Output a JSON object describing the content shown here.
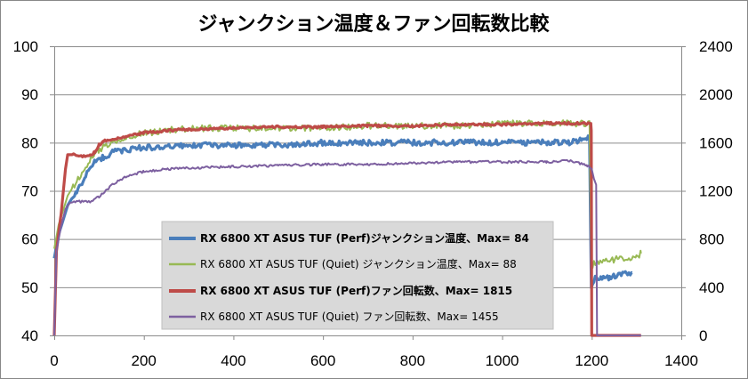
{
  "chart_data": {
    "type": "line",
    "title": "ジャンクション温度＆ファン回転数比較",
    "xlim": [
      0,
      1400
    ],
    "x_ticks": [
      "0",
      "200",
      "400",
      "600",
      "800",
      "1000",
      "1200",
      "1400"
    ],
    "y_left": {
      "lim": [
        40,
        100
      ],
      "ticks": [
        "100",
        "90",
        "80",
        "70",
        "60",
        "50",
        "40"
      ]
    },
    "y_right": {
      "lim": [
        0,
        2400
      ],
      "ticks": [
        "2400",
        "2000",
        "1600",
        "1200",
        "800",
        "400",
        "0"
      ]
    },
    "grid": true,
    "legend_position": "center-bottom",
    "series": [
      {
        "name": "RX 6800 XT ASUS TUF (Perf)ジャンクション温度、Max= 84",
        "axis": "left",
        "color": "#4a7ebb",
        "bold": true,
        "x": [
          0,
          10,
          20,
          30,
          50,
          70,
          90,
          110,
          130,
          160,
          200,
          250,
          300,
          400,
          500,
          600,
          700,
          800,
          900,
          1000,
          1100,
          1150,
          1195,
          1199,
          1205,
          1210,
          1220,
          1240,
          1260,
          1280,
          1290
        ],
        "y": [
          56,
          61,
          64,
          67,
          70,
          73,
          76,
          77,
          78,
          78.5,
          79,
          79,
          79.5,
          79.5,
          79.5,
          80,
          80,
          80,
          80,
          80,
          80,
          80,
          81,
          50,
          51.5,
          52,
          52,
          52,
          52.5,
          53,
          53
        ]
      },
      {
        "name": "RX 6800 XT ASUS TUF (Quiet) ジャンクション温度、Max= 88",
        "axis": "left",
        "color": "#98b954",
        "bold": false,
        "x": [
          0,
          10,
          20,
          30,
          50,
          70,
          90,
          110,
          130,
          160,
          200,
          250,
          300,
          400,
          500,
          600,
          700,
          800,
          900,
          1000,
          1100,
          1150,
          1195,
          1199,
          1205,
          1210,
          1220,
          1240,
          1260,
          1280,
          1300,
          1310
        ],
        "y": [
          58,
          63,
          66,
          69,
          72,
          75,
          78,
          79,
          80,
          81,
          82,
          82.5,
          83,
          83,
          83,
          83,
          83.5,
          83.5,
          83.5,
          84,
          84,
          84,
          84,
          54,
          55,
          55,
          55,
          55.5,
          56,
          56,
          56.5,
          57
        ]
      },
      {
        "name": "RX 6800 XT ASUS TUF (Perf)ファン回転数、Max= 1815",
        "axis": "right",
        "color": "#be4b48",
        "bold": true,
        "x": [
          0,
          5,
          15,
          25,
          30,
          40,
          60,
          80,
          90,
          100,
          110,
          130,
          160,
          200,
          250,
          300,
          400,
          500,
          600,
          700,
          800,
          900,
          1000,
          1100,
          1150,
          1198,
          1199,
          1200,
          1210,
          1250,
          1310
        ],
        "y": [
          0,
          700,
          1000,
          1380,
          1500,
          1500,
          1490,
          1490,
          1520,
          1580,
          1610,
          1630,
          1650,
          1680,
          1700,
          1710,
          1720,
          1730,
          1730,
          1740,
          1740,
          1750,
          1750,
          1760,
          1760,
          1760,
          1700,
          0,
          0,
          0,
          0
        ]
      },
      {
        "name": "RX 6800 XT ASUS TUF (Quiet) ファン回転数、Max= 1455",
        "axis": "right",
        "color": "#7d60a0",
        "bold": false,
        "x": [
          0,
          5,
          15,
          25,
          35,
          50,
          80,
          100,
          130,
          160,
          200,
          250,
          300,
          400,
          500,
          600,
          700,
          800,
          900,
          1000,
          1100,
          1150,
          1190,
          1200,
          1205,
          1210,
          1212,
          1220,
          1260,
          1300,
          1310
        ],
        "y": [
          0,
          700,
          900,
          1050,
          1100,
          1110,
          1110,
          1150,
          1250,
          1320,
          1360,
          1380,
          1390,
          1400,
          1410,
          1420,
          1420,
          1430,
          1440,
          1440,
          1440,
          1450,
          1410,
          1380,
          1300,
          1250,
          0,
          0,
          0,
          0,
          0
        ]
      }
    ]
  }
}
